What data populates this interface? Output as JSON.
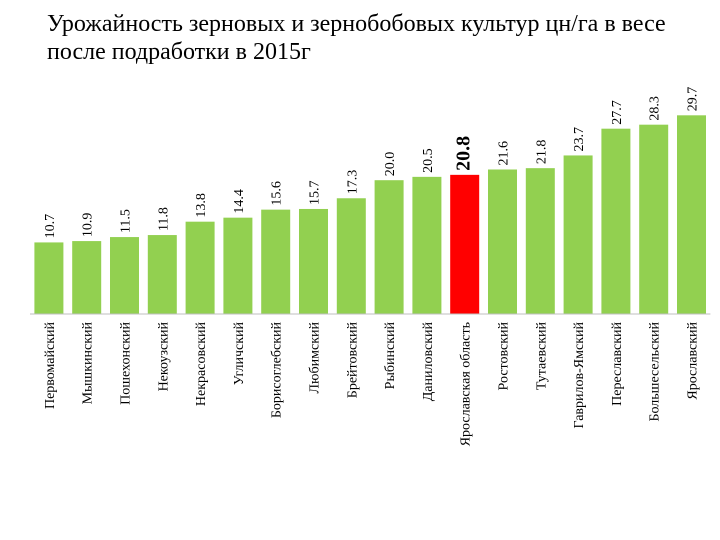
{
  "chart_data": {
    "type": "bar",
    "title": "Урожайность зерновых и зернобобовых культур цн/га в весе после подработки в 2015г",
    "xlabel": "",
    "ylabel": "",
    "ylim": [
      0,
      31
    ],
    "grid": false,
    "legend": "none",
    "categories": [
      "Первомайский",
      "Мышкинский",
      "Пошехонский",
      "Некоузский",
      "Некрасовский",
      "Угличский",
      "Борисоглебский",
      "Любимский",
      "Брейтовский",
      "Рыбинский",
      "Даниловский",
      "Ярославская область",
      "Ростовский",
      "Тутаевский",
      "Гаврилов-Ямский",
      "Переславский",
      "Большесельский",
      "Ярославский"
    ],
    "value_labels": [
      "10.7",
      "10.9",
      "11.5",
      "11.8",
      "13.8",
      "14.4",
      "15.6",
      "15.7",
      "17.3",
      "20.0",
      "20.5",
      "20.8",
      "21.6",
      "21.8",
      "23.7",
      "27.7",
      "28.3",
      "29.7"
    ],
    "values": [
      10.7,
      10.9,
      11.5,
      11.8,
      13.8,
      14.4,
      15.6,
      15.7,
      17.3,
      20.0,
      20.5,
      20.8,
      21.6,
      21.8,
      23.7,
      27.7,
      28.3,
      29.7
    ],
    "highlight_index": 11,
    "colors": {
      "bar": "#92d050",
      "highlight": "#ff0000",
      "axis": "#bfbfbf"
    }
  }
}
